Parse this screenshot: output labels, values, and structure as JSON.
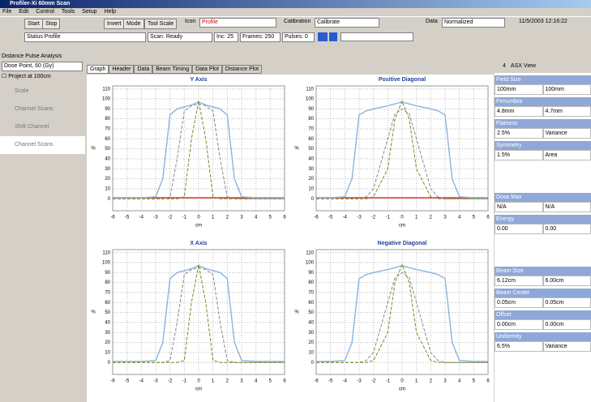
{
  "window": {
    "title": "Profiler-Xi 60mm Scan"
  },
  "menu": [
    "File",
    "Edit",
    "Control",
    "Tools",
    "Setup",
    "Help"
  ],
  "toolbar": {
    "buttons": [
      "Start",
      "Stop",
      "Invert",
      "Mode",
      "Tool Scale"
    ],
    "icon_label": "Icon",
    "icon_value": "Profile",
    "calibration_label": "Calibration",
    "calibration_value": "Calibrate",
    "data_label": "Data",
    "data_value": "Normalized",
    "timestamp": "11/5/2003 12:16:22"
  },
  "status": {
    "profile": "Status Profile",
    "scan": "Scan: Ready",
    "inc": "Inc: 25",
    "frames": "Frames: 250",
    "pulses": "Pulses: 0"
  },
  "left": {
    "analysis": "Distance Pulse Analysis",
    "dose": "Dose Point, 60 (Gy)",
    "project": "Project at 100cm",
    "items": [
      "Scale",
      "Channel Scans",
      "Shift Channel",
      "Channel Scans"
    ]
  },
  "tabs": [
    "Graph",
    "Header",
    "Data",
    "Beam Timing",
    "Data Plot",
    "Distance Plot"
  ],
  "right": {
    "tabs": [
      "4",
      "ASX View"
    ],
    "sections": [
      {
        "header": "Field Size",
        "cells": [
          "100mm",
          "100mm"
        ]
      },
      {
        "header": "Penumbra",
        "cells": [
          "4.8mm",
          "4.7mm"
        ]
      },
      {
        "header": "Flatness",
        "cells": [
          "2.5%",
          "Variance"
        ]
      },
      {
        "header": "Symmetry",
        "cells": [
          "1.5%",
          "Area"
        ]
      },
      {
        "header": "Dose Max",
        "cells": [
          "N/A",
          "N/A"
        ]
      },
      {
        "header": "Energy",
        "cells": [
          "0.00",
          "0.00"
        ]
      },
      {
        "header": "Beam Size",
        "cells": [
          "6.12cm",
          "6.00cm"
        ]
      },
      {
        "header": "Beam Center",
        "cells": [
          "0.05cm",
          "0.05cm"
        ]
      },
      {
        "header": "Offset",
        "cells": [
          "0.00cm",
          "0.00cm"
        ]
      },
      {
        "header": "Uniformity",
        "cells": [
          "6.5%",
          "Variance"
        ]
      }
    ]
  },
  "charts": [
    {
      "type": "line",
      "title": "Y Axis",
      "xlabel": "cm",
      "ylabel": "%",
      "xlim": [
        -6,
        6
      ],
      "ylim": [
        -12,
        113
      ],
      "xticks": [
        -6,
        -5,
        -4,
        -3,
        -2,
        -1,
        0,
        1,
        2,
        3,
        4,
        5,
        6
      ],
      "yticks": [
        0,
        10,
        20,
        30,
        40,
        50,
        60,
        70,
        80,
        90,
        100,
        110
      ],
      "grid": true,
      "x": [
        -6,
        -5,
        -4,
        -3,
        -2.5,
        -2,
        -1.5,
        -1,
        -0.5,
        0,
        0.5,
        1,
        1.5,
        2,
        2.5,
        3,
        4,
        5,
        6
      ],
      "series": [
        {
          "color": "#e03030",
          "dash": false,
          "values": [
            1,
            1,
            1,
            1,
            1,
            1,
            1,
            1,
            1,
            1,
            1,
            1,
            1,
            1,
            1,
            1,
            1,
            1,
            1
          ]
        },
        {
          "color": "#8ab4e0",
          "dash": false,
          "values": [
            1,
            1,
            1,
            2,
            20,
            84,
            90,
            92,
            94,
            97,
            94,
            92,
            90,
            84,
            20,
            2,
            1,
            1,
            1
          ]
        },
        {
          "color": "#888888",
          "dash": true,
          "values": [
            0,
            0,
            0,
            0,
            0,
            2,
            40,
            88,
            93,
            95,
            93,
            88,
            40,
            2,
            0,
            0,
            0,
            0,
            0
          ]
        },
        {
          "color": "#7a8a20",
          "dash": true,
          "values": [
            0,
            0,
            0,
            0,
            0,
            0,
            0,
            2,
            60,
            98,
            60,
            2,
            0,
            0,
            0,
            0,
            0,
            0,
            0
          ]
        }
      ]
    },
    {
      "type": "line",
      "title": "Positive Diagonal",
      "xlabel": "cm",
      "ylabel": "%",
      "xlim": [
        -6,
        6
      ],
      "ylim": [
        -12,
        113
      ],
      "xticks": [
        -6,
        -5,
        -4,
        -3,
        -2,
        -1,
        0,
        1,
        2,
        3,
        4,
        5,
        6
      ],
      "yticks": [
        0,
        10,
        20,
        30,
        40,
        50,
        60,
        70,
        80,
        90,
        100,
        110
      ],
      "grid": true,
      "x": [
        -6,
        -5,
        -4,
        -3.5,
        -3,
        -2.5,
        -2,
        -1,
        -0.5,
        0,
        0.5,
        1,
        2,
        2.5,
        3,
        3.5,
        4,
        5,
        6
      ],
      "series": [
        {
          "color": "#e03030",
          "dash": false,
          "values": [
            1,
            1,
            1,
            1,
            1,
            1,
            1,
            1,
            1,
            1,
            1,
            1,
            1,
            1,
            1,
            1,
            1,
            1,
            1
          ]
        },
        {
          "color": "#8ab4e0",
          "dash": false,
          "values": [
            1,
            1,
            2,
            20,
            84,
            88,
            90,
            93,
            95,
            97,
            95,
            93,
            90,
            88,
            84,
            20,
            2,
            1,
            1
          ]
        },
        {
          "color": "#888888",
          "dash": true,
          "values": [
            0,
            0,
            0,
            0,
            0,
            2,
            10,
            60,
            85,
            90,
            85,
            60,
            10,
            2,
            0,
            0,
            0,
            0,
            0
          ]
        },
        {
          "color": "#7a8a20",
          "dash": true,
          "values": [
            0,
            0,
            0,
            0,
            0,
            0,
            2,
            30,
            80,
            98,
            80,
            30,
            2,
            0,
            0,
            0,
            0,
            0,
            0
          ]
        }
      ]
    },
    {
      "type": "line",
      "title": "X Axis",
      "xlabel": "cm",
      "ylabel": "%",
      "xlim": [
        -6,
        6
      ],
      "ylim": [
        -12,
        113
      ],
      "xticks": [
        -6,
        -5,
        -4,
        -3,
        -2,
        -1,
        0,
        1,
        2,
        3,
        4,
        5,
        6
      ],
      "yticks": [
        0,
        10,
        20,
        30,
        40,
        50,
        60,
        70,
        80,
        90,
        100,
        110
      ],
      "grid": true,
      "x": [
        -6,
        -5,
        -4,
        -3,
        -2.5,
        -2,
        -1.5,
        -1,
        -0.5,
        0,
        0.5,
        1,
        1.5,
        2,
        2.5,
        3,
        4,
        5,
        6
      ],
      "series": [
        {
          "color": "#8ab4e0",
          "dash": false,
          "values": [
            1,
            1,
            1,
            2,
            20,
            84,
            90,
            92,
            94,
            97,
            94,
            92,
            90,
            84,
            20,
            2,
            1,
            1,
            1
          ]
        },
        {
          "color": "#888888",
          "dash": true,
          "values": [
            0,
            0,
            0,
            0,
            0,
            2,
            40,
            88,
            93,
            95,
            93,
            88,
            40,
            2,
            0,
            0,
            0,
            0,
            0
          ]
        },
        {
          "color": "#7a8a20",
          "dash": true,
          "values": [
            0,
            0,
            0,
            0,
            0,
            0,
            0,
            2,
            60,
            98,
            60,
            2,
            0,
            0,
            0,
            0,
            0,
            0,
            0
          ]
        }
      ]
    },
    {
      "type": "line",
      "title": "Negative Diagonal",
      "xlabel": "cm",
      "ylabel": "%",
      "xlim": [
        -6,
        6
      ],
      "ylim": [
        -12,
        113
      ],
      "xticks": [
        -6,
        -5,
        -4,
        -3,
        -2,
        -1,
        0,
        1,
        2,
        3,
        4,
        5,
        6
      ],
      "yticks": [
        0,
        10,
        20,
        30,
        40,
        50,
        60,
        70,
        80,
        90,
        100,
        110
      ],
      "grid": true,
      "x": [
        -6,
        -5,
        -4,
        -3.5,
        -3,
        -2.5,
        -2,
        -1,
        -0.5,
        0,
        0.5,
        1,
        2,
        2.5,
        3,
        3.5,
        4,
        5,
        6
      ],
      "series": [
        {
          "color": "#8ab4e0",
          "dash": false,
          "values": [
            1,
            1,
            2,
            20,
            84,
            88,
            90,
            93,
            95,
            97,
            95,
            93,
            90,
            88,
            84,
            20,
            2,
            1,
            1
          ]
        },
        {
          "color": "#888888",
          "dash": true,
          "values": [
            0,
            0,
            0,
            0,
            0,
            2,
            10,
            60,
            85,
            90,
            85,
            60,
            10,
            2,
            0,
            0,
            0,
            0,
            0
          ]
        },
        {
          "color": "#7a8a20",
          "dash": true,
          "values": [
            0,
            0,
            0,
            0,
            0,
            0,
            2,
            30,
            80,
            98,
            80,
            30,
            2,
            0,
            0,
            0,
            0,
            0,
            0
          ]
        }
      ]
    }
  ]
}
